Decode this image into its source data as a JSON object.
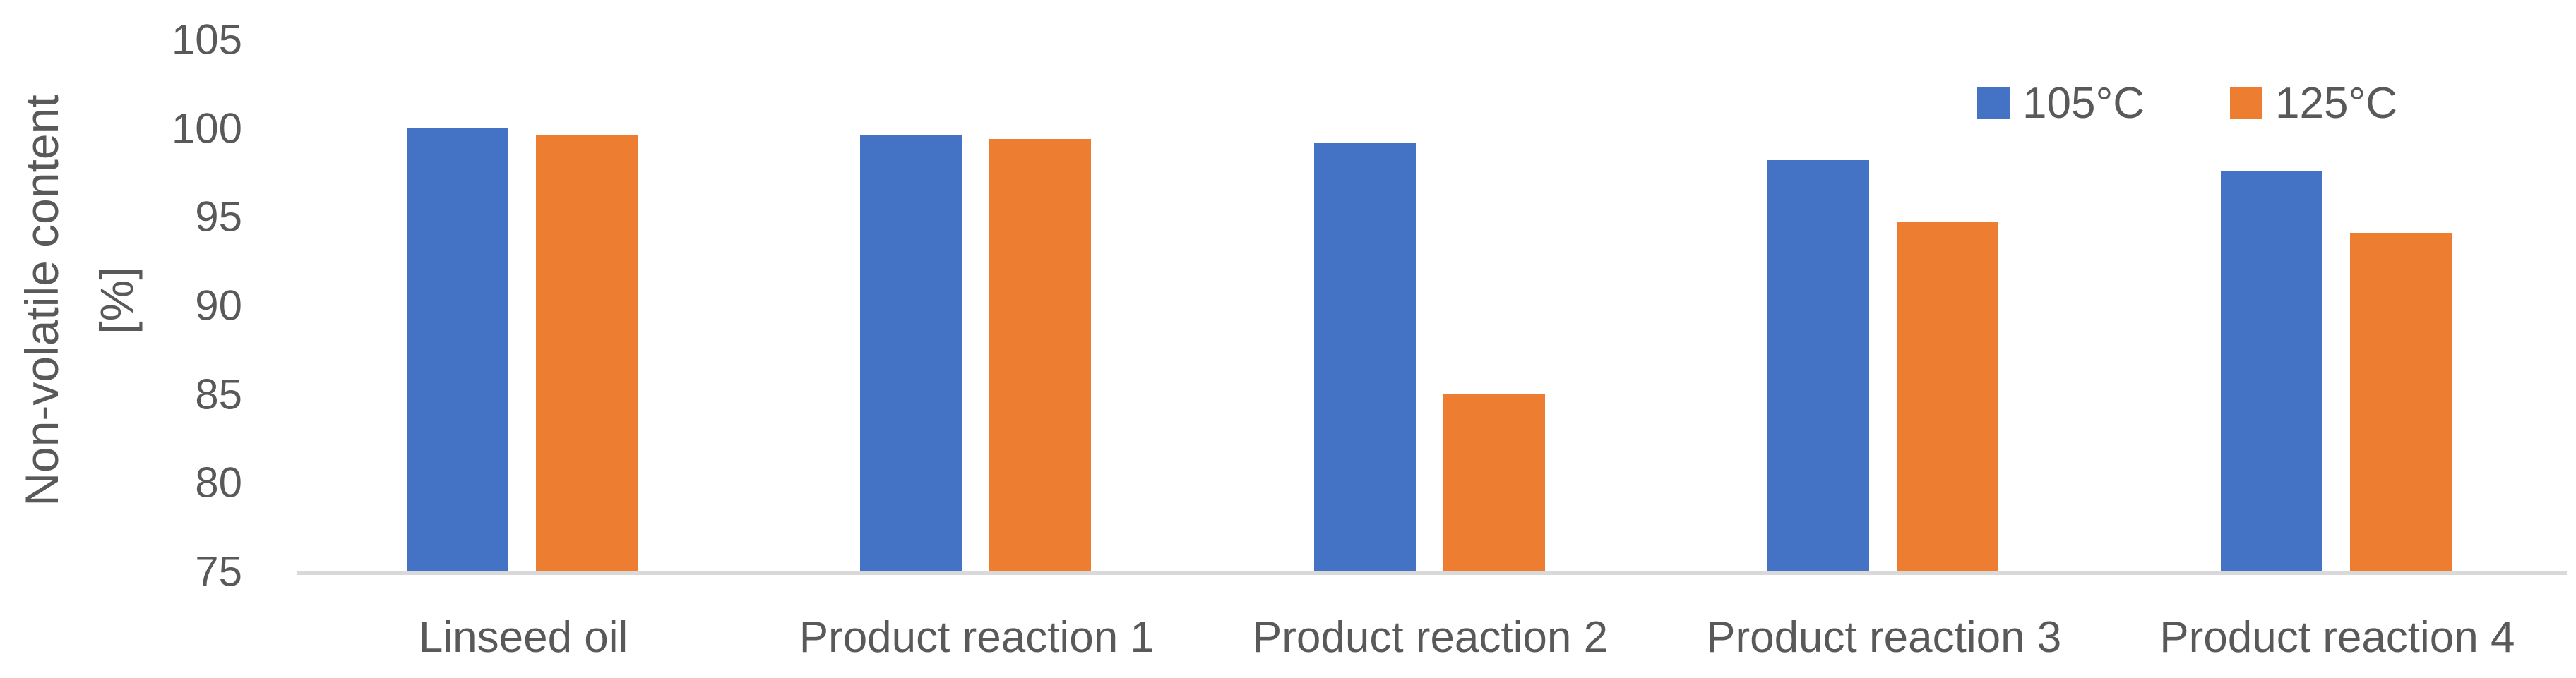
{
  "chart_data": {
    "type": "bar",
    "title": "",
    "categories": [
      "Linseed oil",
      "Product reaction 1",
      "Product reaction 2",
      "Product reaction 3",
      "Product reaction 4"
    ],
    "series": [
      {
        "name": "105°C",
        "color": "#4472C4",
        "values": [
          100.0,
          99.6,
          99.2,
          98.2,
          97.6
        ]
      },
      {
        "name": "125°C",
        "color": "#ED7D31",
        "values": [
          99.6,
          99.4,
          85.0,
          94.7,
          94.1
        ]
      }
    ],
    "ylabel": "Non-volatile content [%]",
    "ylabel_line1": "Non-volatile content",
    "ylabel_line2": "[%]",
    "yticks": [
      75,
      80,
      85,
      90,
      95,
      100,
      105
    ],
    "ylim": [
      75,
      105
    ],
    "grid": false,
    "legend_position": "top-right",
    "axis_color": "#D9D9D9",
    "text_color": "#595959",
    "background_color": "#FFFFFF"
  }
}
